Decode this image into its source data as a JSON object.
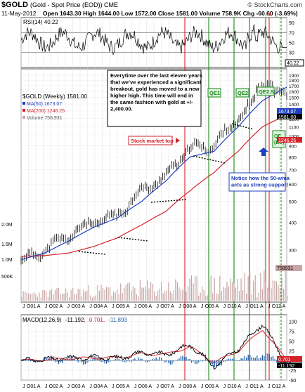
{
  "header": {
    "symbol": "$GOLD",
    "desc": "(Gold - Spot Price (EOD)) CME",
    "source": "© StockCharts.com",
    "date": "11-May-2012",
    "stats": "Open 1643.30  High 1644.00  Low 1572.00  Close 1581.00  Volume 758.9K  Chg -60.60 (-3.69%)",
    "chg_arrow": "▼"
  },
  "colors": {
    "price_bars": "#000000",
    "ma50": "#1f3fbf",
    "ma200": "#d2232a",
    "volume": "#c9a6a6",
    "qe_lines": "#1a8a1a",
    "red_lines": "#d2232a",
    "macd_hist": "#1f5fa8",
    "macd_line": "#000000",
    "macd_signal": "#d2232a",
    "rsi_line": "#000000"
  },
  "rsi_panel": {
    "label": "RSI(14) 40.22",
    "ticks": [
      "90",
      "70",
      "50",
      "30",
      "10"
    ],
    "current": "40.22"
  },
  "price_panel": {
    "legend": {
      "title": "$GOLD (Weekly) 1581.00",
      "ma50": "MA(50) 1673.07",
      "ma200": "MA(200) 1246.25",
      "volume": "Volume 758,931"
    },
    "right_ticks": [
      "1900",
      "1800",
      "1700",
      "1600",
      "1500",
      "1400",
      "1300",
      "1200",
      "1100",
      "1000",
      "900",
      "800",
      "700",
      "600",
      "500",
      "400",
      "300"
    ],
    "right_badges": {
      "ma50": "1673.07",
      "close": "1581.00",
      "ma200": "1246.25"
    },
    "vol_ticks": [
      "2.0M",
      "1.5M",
      "1.0M",
      "500K"
    ],
    "vol_badge": "758931"
  },
  "annotations": {
    "main_text": "Everytime over the last eleven years that we've experienced a significant breakout, gold has moved to a new higher high. This time will end in the same fashion with gold at +/- 2,400.00.",
    "stock_top": "Stock market top",
    "qe1": "QE1",
    "qe2": "QE2",
    "qe25": "QE2.5",
    "qe_eu": "QE (EU)",
    "notice": "Notice how the 50-wma acts as strong support"
  },
  "x_axis": {
    "labels": [
      "J",
      "O01",
      "A",
      "J",
      "O02",
      "A",
      "J",
      "O03",
      "A",
      "J",
      "O04",
      "A",
      "J",
      "O05",
      "A",
      "J",
      "O06",
      "A",
      "J",
      "O07",
      "A",
      "J",
      "O08",
      "A",
      "J",
      "O09",
      "A",
      "J",
      "O10",
      "A",
      "J",
      "O11",
      "A",
      "J",
      "O12",
      "A"
    ]
  },
  "macd_panel": {
    "label_name": "MACD(12,26,9)",
    "label_macd": "-11.192,",
    "label_signal": "0.701,",
    "label_hist": "-11.893",
    "ticks": [
      "100",
      "75",
      "50",
      "25",
      "0",
      "-25",
      "-50"
    ],
    "badges": {
      "signal": "0.701",
      "macd": "-11.192"
    }
  },
  "chart_data": [
    {
      "type": "line",
      "title": "$GOLD (Weekly) 1581.00",
      "x": [
        "2001",
        "2002",
        "2003",
        "2004",
        "2005",
        "2006",
        "2007",
        "2008",
        "2009",
        "2010",
        "2011",
        "2012"
      ],
      "series": [
        {
          "name": "$GOLD (Weekly)",
          "values": [
            265,
            300,
            350,
            400,
            430,
            560,
            650,
            880,
            900,
            1200,
            1550,
            1581
          ]
        },
        {
          "name": "MA(50)",
          "values": [
            270,
            290,
            330,
            380,
            420,
            500,
            620,
            800,
            850,
            1100,
            1450,
            1673.07
          ]
        },
        {
          "name": "MA(200)",
          "values": [
            280,
            282,
            290,
            310,
            340,
            390,
            450,
            560,
            680,
            850,
            1100,
            1246.25
          ]
        }
      ],
      "ylim": [
        250,
        2000
      ],
      "yscale": "log"
    },
    {
      "type": "line",
      "title": "RSI(14) 40.22",
      "ylim": [
        0,
        100
      ],
      "reference_lines": [
        70,
        30
      ],
      "series": [
        {
          "name": "RSI(14)",
          "values": [
            50,
            62,
            55,
            68,
            58,
            72,
            60,
            74,
            45,
            66,
            80,
            40.22
          ]
        }
      ]
    },
    {
      "type": "line",
      "title": "MACD(12,26,9)",
      "ylim": [
        -50,
        110
      ],
      "series": [
        {
          "name": "MACD",
          "values": [
            0,
            3,
            6,
            8,
            6,
            20,
            15,
            40,
            -15,
            30,
            95,
            -11.192
          ]
        },
        {
          "name": "Signal",
          "values": [
            0,
            2,
            5,
            7,
            7,
            17,
            16,
            35,
            -5,
            25,
            80,
            0.701
          ]
        },
        {
          "name": "Histogram",
          "values": [
            0,
            1,
            1,
            1,
            -1,
            3,
            -1,
            5,
            -10,
            5,
            15,
            -11.893
          ]
        }
      ]
    }
  ]
}
